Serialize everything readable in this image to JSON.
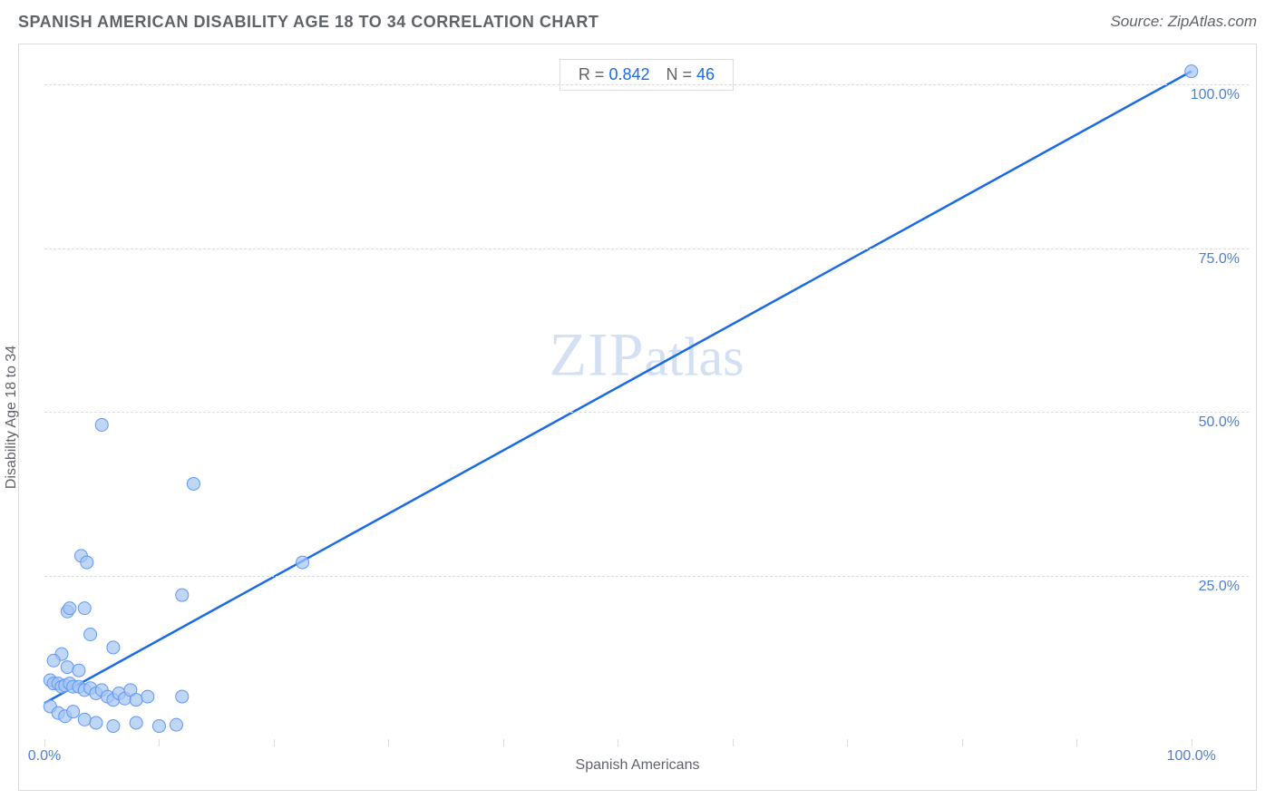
{
  "header": {
    "title": "SPANISH AMERICAN DISABILITY AGE 18 TO 34 CORRELATION CHART",
    "source": "Source: ZipAtlas.com"
  },
  "watermark": {
    "left": "ZIP",
    "right": "atlas"
  },
  "stats": {
    "r_label": "R =",
    "r_value": "0.842",
    "n_label": "N =",
    "n_value": "46"
  },
  "chart": {
    "type": "scatter",
    "xlabel": "Spanish Americans",
    "ylabel": "Disability Age 18 to 34",
    "xlim": [
      0,
      105
    ],
    "ylim": [
      0,
      105
    ],
    "xtick_positions": [
      0,
      10,
      20,
      30,
      40,
      50,
      60,
      70,
      80,
      90,
      100
    ],
    "xtick_labels": {
      "0": "0.0%",
      "100": "100.0%"
    },
    "ytick_positions": [
      25,
      50,
      75,
      100
    ],
    "ytick_labels": {
      "25": "25.0%",
      "50": "50.0%",
      "75": "75.0%",
      "100": "100.0%"
    },
    "grid_color": "#dadce0",
    "background_color": "#ffffff",
    "marker": {
      "radius": 7,
      "fill": "#a4c4f4",
      "fill_opacity": 0.7,
      "stroke": "#5e97f6",
      "stroke_width": 1
    },
    "regression_line": {
      "x1": 0,
      "y1": 5.5,
      "x2": 100,
      "y2": 102,
      "stroke": "#1a6ae6",
      "stroke_width": 2.5
    },
    "points": [
      {
        "x": 100,
        "y": 102
      },
      {
        "x": 22.5,
        "y": 27
      },
      {
        "x": 13,
        "y": 39
      },
      {
        "x": 5,
        "y": 48
      },
      {
        "x": 12,
        "y": 22
      },
      {
        "x": 3.2,
        "y": 28
      },
      {
        "x": 3.7,
        "y": 27
      },
      {
        "x": 2,
        "y": 19.5
      },
      {
        "x": 2.2,
        "y": 20
      },
      {
        "x": 3.5,
        "y": 20
      },
      {
        "x": 4,
        "y": 16
      },
      {
        "x": 6,
        "y": 14
      },
      {
        "x": 1.5,
        "y": 13
      },
      {
        "x": 0.8,
        "y": 12
      },
      {
        "x": 2,
        "y": 11
      },
      {
        "x": 3,
        "y": 10.5
      },
      {
        "x": 0.5,
        "y": 9
      },
      {
        "x": 0.8,
        "y": 8.5
      },
      {
        "x": 1.2,
        "y": 8.5
      },
      {
        "x": 1.5,
        "y": 8
      },
      {
        "x": 1.8,
        "y": 8.2
      },
      {
        "x": 2.2,
        "y": 8.5
      },
      {
        "x": 2.5,
        "y": 8
      },
      {
        "x": 3,
        "y": 8
      },
      {
        "x": 3.5,
        "y": 7.5
      },
      {
        "x": 4,
        "y": 7.8
      },
      {
        "x": 4.5,
        "y": 7
      },
      {
        "x": 5,
        "y": 7.5
      },
      {
        "x": 5.5,
        "y": 6.5
      },
      {
        "x": 6,
        "y": 6
      },
      {
        "x": 6.5,
        "y": 7
      },
      {
        "x": 7,
        "y": 6.2
      },
      {
        "x": 7.5,
        "y": 7.5
      },
      {
        "x": 8,
        "y": 6
      },
      {
        "x": 9,
        "y": 6.5
      },
      {
        "x": 12,
        "y": 6.5
      },
      {
        "x": 0.5,
        "y": 5
      },
      {
        "x": 1.2,
        "y": 4
      },
      {
        "x": 1.8,
        "y": 3.5
      },
      {
        "x": 2.5,
        "y": 4.2
      },
      {
        "x": 3.5,
        "y": 3
      },
      {
        "x": 4.5,
        "y": 2.5
      },
      {
        "x": 6,
        "y": 2
      },
      {
        "x": 8,
        "y": 2.5
      },
      {
        "x": 10,
        "y": 2
      },
      {
        "x": 11.5,
        "y": 2.2
      }
    ]
  }
}
